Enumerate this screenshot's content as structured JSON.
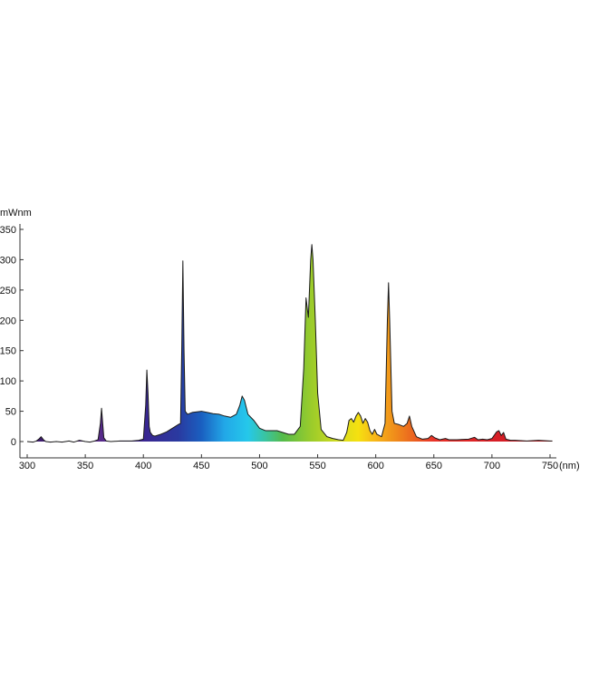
{
  "chart_data": {
    "type": "area",
    "title": "",
    "ylabel": "mWnm",
    "xlabel": "(nm)",
    "xlim": [
      300,
      750
    ],
    "ylim": [
      0,
      350
    ],
    "x_ticks": [
      300,
      350,
      400,
      450,
      500,
      550,
      600,
      650,
      700,
      750
    ],
    "y_ticks": [
      0,
      50,
      100,
      150,
      200,
      250,
      300,
      350
    ],
    "grid": false,
    "legend": "none",
    "fill": "visible-spectrum gradient",
    "outline_color": "#1a1a1a",
    "series": [
      {
        "points": [
          [
            300,
            0
          ],
          [
            305,
            -1
          ],
          [
            308,
            1
          ],
          [
            310,
            4
          ],
          [
            312,
            8
          ],
          [
            314,
            3
          ],
          [
            316,
            0
          ],
          [
            320,
            -1
          ],
          [
            325,
            0
          ],
          [
            330,
            -1
          ],
          [
            336,
            1
          ],
          [
            340,
            -1
          ],
          [
            345,
            2
          ],
          [
            350,
            0
          ],
          [
            354,
            -1
          ],
          [
            358,
            1
          ],
          [
            361,
            3
          ],
          [
            363,
            30
          ],
          [
            364,
            55
          ],
          [
            365,
            30
          ],
          [
            366,
            6
          ],
          [
            368,
            1
          ],
          [
            372,
            0
          ],
          [
            380,
            1
          ],
          [
            390,
            1
          ],
          [
            396,
            2
          ],
          [
            400,
            4
          ],
          [
            402,
            60
          ],
          [
            403,
            118
          ],
          [
            404,
            80
          ],
          [
            405,
            25
          ],
          [
            406,
            15
          ],
          [
            408,
            10
          ],
          [
            410,
            9
          ],
          [
            415,
            12
          ],
          [
            420,
            16
          ],
          [
            425,
            22
          ],
          [
            430,
            28
          ],
          [
            432,
            30
          ],
          [
            433,
            150
          ],
          [
            434,
            298
          ],
          [
            435,
            150
          ],
          [
            436,
            50
          ],
          [
            438,
            45
          ],
          [
            442,
            48
          ],
          [
            450,
            50
          ],
          [
            455,
            48
          ],
          [
            460,
            46
          ],
          [
            465,
            45
          ],
          [
            470,
            42
          ],
          [
            475,
            40
          ],
          [
            480,
            45
          ],
          [
            483,
            60
          ],
          [
            485,
            75
          ],
          [
            487,
            68
          ],
          [
            490,
            45
          ],
          [
            495,
            35
          ],
          [
            500,
            22
          ],
          [
            505,
            18
          ],
          [
            510,
            18
          ],
          [
            515,
            18
          ],
          [
            520,
            15
          ],
          [
            525,
            12
          ],
          [
            530,
            12
          ],
          [
            535,
            25
          ],
          [
            538,
            120
          ],
          [
            540,
            237
          ],
          [
            542,
            205
          ],
          [
            544,
            300
          ],
          [
            545,
            325
          ],
          [
            546,
            300
          ],
          [
            548,
            200
          ],
          [
            550,
            80
          ],
          [
            553,
            20
          ],
          [
            558,
            8
          ],
          [
            563,
            5
          ],
          [
            568,
            3
          ],
          [
            572,
            2
          ],
          [
            575,
            15
          ],
          [
            577,
            35
          ],
          [
            579,
            38
          ],
          [
            581,
            32
          ],
          [
            583,
            42
          ],
          [
            585,
            48
          ],
          [
            587,
            42
          ],
          [
            589,
            30
          ],
          [
            591,
            38
          ],
          [
            593,
            32
          ],
          [
            595,
            18
          ],
          [
            597,
            12
          ],
          [
            599,
            20
          ],
          [
            601,
            12
          ],
          [
            605,
            8
          ],
          [
            608,
            30
          ],
          [
            610,
            200
          ],
          [
            611,
            262
          ],
          [
            612,
            200
          ],
          [
            614,
            50
          ],
          [
            616,
            30
          ],
          [
            620,
            28
          ],
          [
            624,
            25
          ],
          [
            627,
            30
          ],
          [
            629,
            42
          ],
          [
            631,
            25
          ],
          [
            635,
            8
          ],
          [
            640,
            4
          ],
          [
            645,
            5
          ],
          [
            648,
            10
          ],
          [
            651,
            6
          ],
          [
            655,
            3
          ],
          [
            660,
            5
          ],
          [
            663,
            3
          ],
          [
            670,
            3
          ],
          [
            680,
            4
          ],
          [
            685,
            7
          ],
          [
            688,
            3
          ],
          [
            692,
            4
          ],
          [
            696,
            3
          ],
          [
            700,
            5
          ],
          [
            704,
            16
          ],
          [
            706,
            18
          ],
          [
            708,
            10
          ],
          [
            710,
            15
          ],
          [
            712,
            4
          ],
          [
            716,
            2
          ],
          [
            720,
            2
          ],
          [
            730,
            1
          ],
          [
            740,
            2
          ],
          [
            750,
            1
          ],
          [
            752,
            1
          ]
        ]
      }
    ]
  }
}
